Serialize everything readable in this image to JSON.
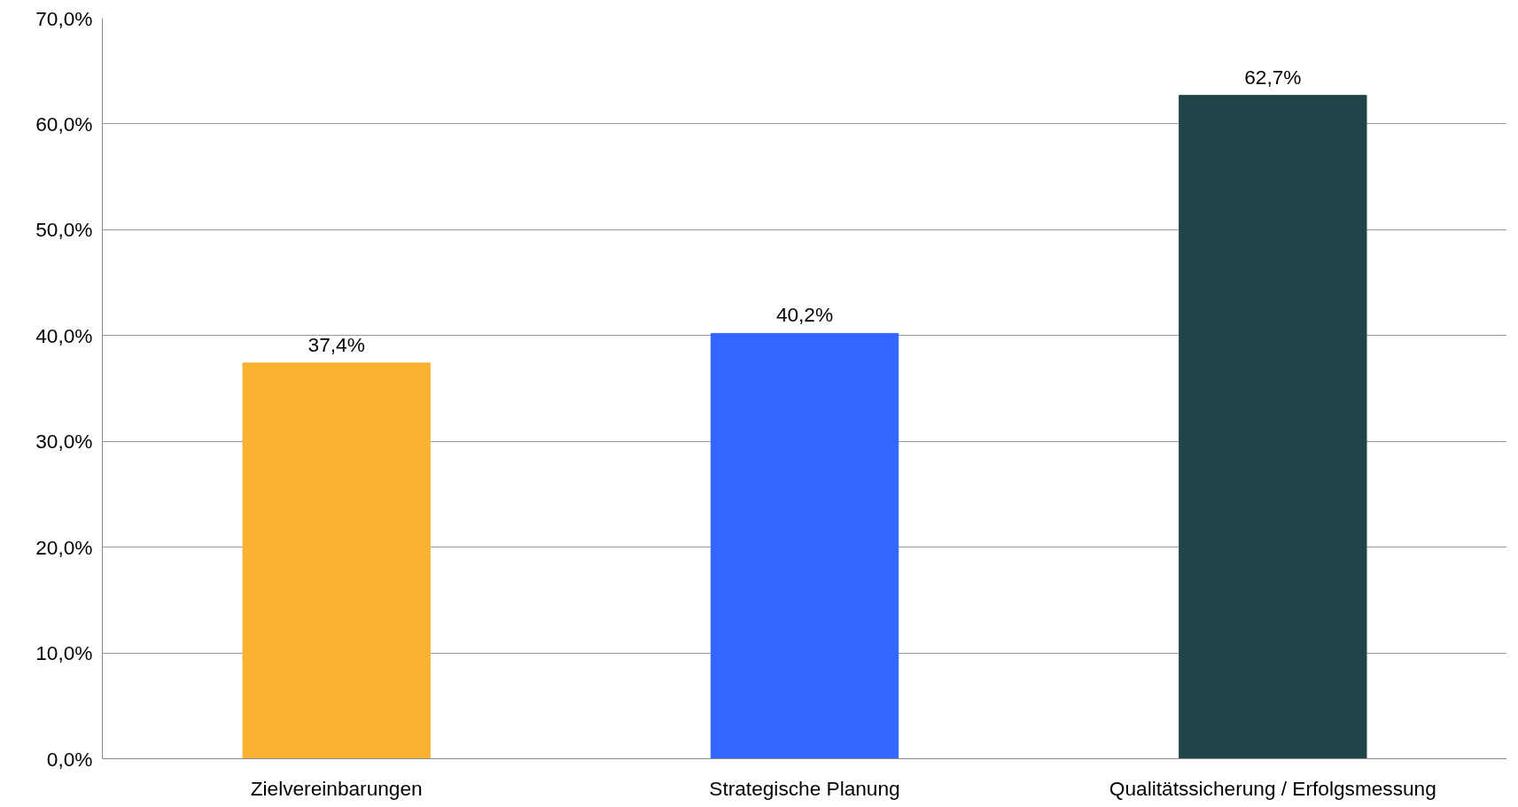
{
  "chart_data": {
    "type": "bar",
    "categories": [
      "Zielvereinbarungen",
      "Strategische Planung",
      "Qualitätssicherung / Erfolgsmessung"
    ],
    "values": [
      37.4,
      40.2,
      62.7
    ],
    "colors": [
      "#fbb132",
      "#3366ff",
      "#1f4548"
    ],
    "value_labels": [
      "37,4%",
      "40,2%",
      "62,7%"
    ],
    "ylim": [
      0,
      70
    ],
    "yticks": [
      {
        "value": 0,
        "label": "0,0%"
      },
      {
        "value": 10,
        "label": "10,0%"
      },
      {
        "value": 20,
        "label": "20,0%"
      },
      {
        "value": 30,
        "label": "30,0%"
      },
      {
        "value": 40,
        "label": "40,0%"
      },
      {
        "value": 50,
        "label": "50,0%"
      },
      {
        "value": 60,
        "label": "60,0%"
      },
      {
        "value": 70,
        "label": "70,0%"
      }
    ],
    "grid": "y"
  }
}
